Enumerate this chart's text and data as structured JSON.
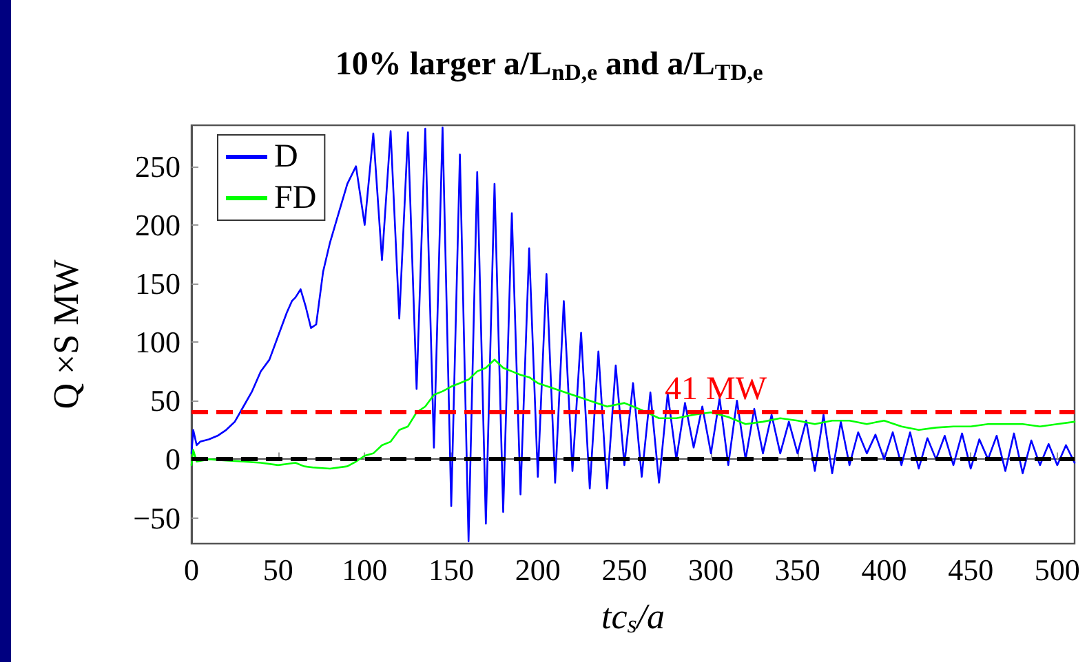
{
  "chart_data": {
    "type": "line",
    "title": "10% larger a/L$_{nD,e}$ and a/L$_{TD,e}$",
    "xlabel": "tc$_{s}$/a",
    "ylabel": "Q ×S MW",
    "xlim": [
      0,
      510
    ],
    "xticks": [
      0,
      50,
      100,
      150,
      200,
      250,
      300,
      350,
      400,
      450,
      500
    ],
    "ylim": [
      -72,
      285
    ],
    "yticks": [
      -50,
      0,
      50,
      100,
      150,
      200,
      250
    ],
    "grid": false,
    "legend": "top left",
    "marker": "none",
    "line_style": "solid",
    "ref_lines": [
      {
        "axis": "y",
        "value": 41,
        "label": "41 MW",
        "color": "#ff0000",
        "line_style": "dashed"
      },
      {
        "axis": "y",
        "value": 0,
        "label": null,
        "color": "#000000",
        "line_style": "dashed"
      }
    ],
    "series": [
      {
        "name": "D",
        "color": "#0000ff",
        "x": [
          0,
          1,
          3,
          5,
          10,
          15,
          20,
          25,
          30,
          35,
          40,
          45,
          50,
          55,
          58,
          60,
          63,
          66,
          69,
          72,
          76,
          80,
          85,
          90,
          95,
          100,
          105,
          110,
          115,
          120,
          125,
          130,
          135,
          140,
          145,
          150,
          155,
          160,
          165,
          170,
          175,
          180,
          185,
          190,
          195,
          200,
          205,
          210,
          215,
          220,
          225,
          230,
          235,
          240,
          245,
          250,
          255,
          260,
          265,
          270,
          275,
          280,
          285,
          290,
          295,
          300,
          305,
          310,
          315,
          320,
          325,
          330,
          335,
          340,
          345,
          350,
          355,
          360,
          365,
          370,
          375,
          380,
          385,
          390,
          395,
          400,
          405,
          410,
          415,
          420,
          425,
          430,
          435,
          440,
          445,
          450,
          455,
          460,
          465,
          470,
          475,
          480,
          485,
          490,
          495,
          500,
          505,
          510
        ],
        "values": [
          5,
          25,
          12,
          15,
          17,
          20,
          25,
          32,
          45,
          58,
          75,
          85,
          105,
          125,
          135,
          138,
          145,
          130,
          112,
          115,
          160,
          185,
          210,
          235,
          250,
          200,
          278,
          170,
          280,
          120,
          279,
          60,
          282,
          10,
          283,
          -40,
          260,
          -70,
          245,
          -55,
          235,
          -45,
          210,
          -30,
          180,
          -15,
          158,
          -20,
          135,
          -10,
          108,
          -25,
          92,
          -25,
          80,
          -5,
          65,
          -15,
          57,
          -20,
          56,
          0,
          48,
          10,
          45,
          5,
          52,
          -5,
          50,
          0,
          43,
          5,
          38,
          5,
          32,
          5,
          33,
          -10,
          38,
          -12,
          32,
          -5,
          23,
          5,
          21,
          0,
          23,
          -5,
          23,
          -8,
          18,
          0,
          20,
          -5,
          22,
          -8,
          17,
          0,
          20,
          -10,
          22,
          -12,
          16,
          -5,
          13,
          -5,
          12,
          -3
        ]
      },
      {
        "name": "FD",
        "color": "#00ff00",
        "x": [
          0,
          1,
          3,
          10,
          20,
          30,
          40,
          50,
          55,
          60,
          65,
          70,
          80,
          90,
          95,
          100,
          105,
          110,
          115,
          120,
          125,
          130,
          135,
          140,
          145,
          150,
          155,
          160,
          165,
          170,
          175,
          180,
          185,
          190,
          195,
          200,
          210,
          220,
          230,
          240,
          250,
          255,
          260,
          270,
          280,
          290,
          300,
          310,
          320,
          330,
          340,
          350,
          360,
          370,
          380,
          390,
          400,
          410,
          420,
          430,
          440,
          450,
          460,
          470,
          480,
          490,
          500,
          510
        ],
        "values": [
          -5,
          8,
          -2,
          0,
          -1,
          -2,
          -3,
          -5,
          -4,
          -3,
          -6,
          -7,
          -8,
          -6,
          -2,
          3,
          5,
          12,
          15,
          25,
          28,
          40,
          45,
          55,
          58,
          62,
          65,
          68,
          75,
          78,
          85,
          78,
          75,
          72,
          70,
          65,
          60,
          55,
          50,
          45,
          48,
          45,
          42,
          35,
          35,
          38,
          40,
          36,
          30,
          32,
          35,
          33,
          30,
          33,
          33,
          30,
          33,
          28,
          25,
          27,
          28,
          28,
          30,
          30,
          30,
          28,
          30,
          32
        ]
      }
    ]
  }
}
